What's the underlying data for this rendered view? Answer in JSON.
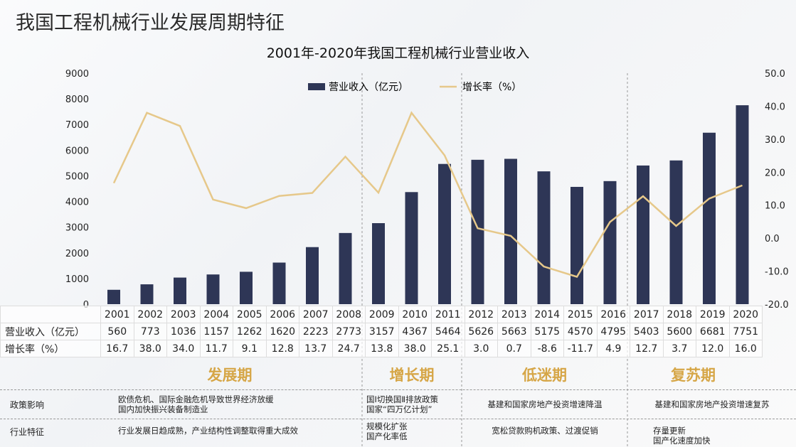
{
  "title": "我国工程机械行业发展周期特征",
  "chart_data": {
    "type": "bar+line",
    "title": "2001年-2020年我国工程机械行业营业收入",
    "categories": [
      "2001",
      "2002",
      "2003",
      "2004",
      "2005",
      "2006",
      "2007",
      "2008",
      "2009",
      "2010",
      "2011",
      "2012",
      "2013",
      "2014",
      "2015",
      "2016",
      "2017",
      "2018",
      "2019",
      "2020"
    ],
    "series": [
      {
        "name": "营业收入（亿元）",
        "type": "bar",
        "axis": "left",
        "color": "#2e3656",
        "values": [
          560,
          773,
          1036,
          1157,
          1262,
          1620,
          2223,
          2773,
          3157,
          4367,
          5464,
          5626,
          5663,
          5175,
          4570,
          4795,
          5403,
          5600,
          6681,
          7751
        ]
      },
      {
        "name": "增长率（%）",
        "type": "line",
        "axis": "right",
        "color": "#e6c88a",
        "values": [
          16.7,
          38.0,
          34.0,
          11.7,
          9.1,
          12.8,
          13.7,
          24.7,
          13.8,
          38.0,
          25.1,
          3.0,
          0.7,
          -8.6,
          -11.7,
          4.9,
          12.7,
          3.7,
          12.0,
          16.0
        ]
      }
    ],
    "ylim_left": [
      0,
      9000
    ],
    "yticks_left": [
      "0",
      "1000",
      "2000",
      "3000",
      "4000",
      "5000",
      "6000",
      "7000",
      "8000",
      "9000"
    ],
    "ylim_right": [
      -20,
      50
    ],
    "yticks_right": [
      "-20.0",
      "-10.0",
      "0.0",
      "10.0",
      "20.0",
      "30.0",
      "40.0",
      "50.0"
    ],
    "legend": "top-center",
    "grid": false
  },
  "table": {
    "row_labels": [
      "营业收入（亿元）",
      "增长率（%）"
    ],
    "rate_text": [
      "16.7",
      "38.0",
      "34.0",
      "11.7",
      "9.1",
      "12.8",
      "13.7",
      "24.7",
      "13.8",
      "38.0",
      "25.1",
      "3.0",
      "0.7",
      "-8.6",
      "-11.7",
      "4.9",
      "12.7",
      "3.7",
      "12.0",
      "16.0"
    ]
  },
  "phases": [
    {
      "name": "发展期",
      "policy": [
        "欧债危机、国际金融危机导致世界经济放缓",
        "国内加快振兴装备制造业"
      ],
      "feature": [
        "行业发展日趋成熟，产业结构性调整取得重大成效"
      ]
    },
    {
      "name": "增长期",
      "policy": [
        "国Ⅰ切换国Ⅱ排放政策",
        "国家“四万亿计划”"
      ],
      "feature": [
        "规模化扩张",
        "国产化率低"
      ]
    },
    {
      "name": "低迷期",
      "policy": [
        "基建和国家房地产投资增速降温"
      ],
      "feature": [
        "宽松贷款购机政策、过渡促销"
      ]
    },
    {
      "name": "复苏期",
      "policy": [
        "基建和国家房地产投资增速复苏"
      ],
      "feature": [
        "存量更新",
        "国产化速度加快"
      ]
    }
  ],
  "row_headers": {
    "policy": "政策影响",
    "feature": "行业特征"
  }
}
